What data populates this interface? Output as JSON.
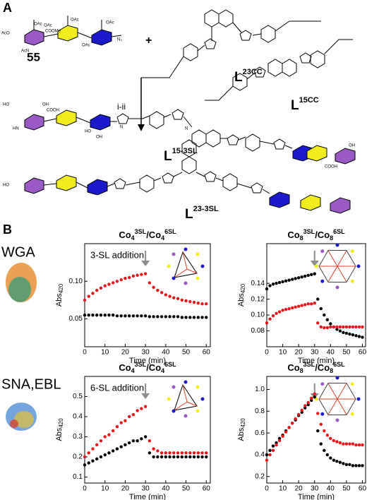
{
  "panels": [
    "A",
    "B"
  ],
  "panel_a": {
    "compound": "55",
    "plus": "+",
    "reagents": "i-ii",
    "ligands": [
      {
        "base": "L",
        "sup": "23CC"
      },
      {
        "base": "L",
        "sup": "15CC"
      },
      {
        "base": "L",
        "sup": "15-3SL"
      },
      {
        "base": "L",
        "sup": "23-3SL"
      }
    ],
    "atom_labels": [
      "AcO",
      "OAc",
      "OAc",
      "OAc",
      "AcN",
      "COOMe",
      "OAc",
      "OAc",
      "N₃",
      "HO",
      "OH",
      "COOH",
      "HN",
      "OH",
      "HO",
      "N",
      "N",
      "COOH",
      "OH",
      "HO"
    ]
  },
  "rows": [
    "WGA",
    "SNA,EBL"
  ],
  "chart_data": [
    {
      "type": "scatter",
      "title": [
        "Co",
        "4",
        "3SL",
        "/Co",
        "4",
        "6SL"
      ],
      "annotation": "3-SL addition",
      "xlabel": "Time (min)",
      "ylabel": [
        "Abs",
        "420"
      ],
      "xlim": [
        0,
        62
      ],
      "xticks": [
        0,
        10,
        20,
        30,
        40,
        50,
        60
      ],
      "ylim": [
        0.013,
        0.15
      ],
      "yticks": [
        0.05,
        {
          "value": 0.1,
          "label": "0.10"
        }
      ],
      "x": [
        0,
        2,
        4,
        6,
        8,
        10,
        12,
        14,
        16,
        18,
        20,
        22,
        24,
        26,
        28,
        30,
        32,
        34,
        36,
        38,
        40,
        42,
        44,
        46,
        48,
        50,
        52,
        54,
        56,
        58,
        60
      ],
      "series": [
        {
          "color": "#000000",
          "values": [
            0.055,
            0.055,
            0.055,
            0.055,
            0.055,
            0.055,
            0.055,
            0.055,
            0.054,
            0.054,
            0.054,
            0.054,
            0.054,
            0.054,
            0.054,
            0.054,
            0.053,
            0.053,
            0.053,
            0.053,
            0.053,
            0.053,
            0.053,
            0.053,
            0.052,
            0.052,
            0.052,
            0.052,
            0.052,
            0.052,
            0.052
          ]
        },
        {
          "color": "#e8161b",
          "values": [
            0.075,
            0.08,
            0.084,
            0.088,
            0.091,
            0.094,
            0.096,
            0.098,
            0.1,
            0.102,
            0.104,
            0.105,
            0.107,
            0.108,
            0.109,
            0.11,
            0.098,
            0.092,
            0.088,
            0.085,
            0.082,
            0.08,
            0.078,
            0.077,
            0.075,
            0.074,
            0.073,
            0.072,
            0.071,
            0.07,
            0.07
          ]
        }
      ]
    },
    {
      "type": "scatter",
      "title": [
        "Co",
        "8",
        "3SL",
        "/Co",
        "8",
        "6SL"
      ],
      "xlabel": "Time (min)",
      "ylabel": [
        "Abs",
        "420"
      ],
      "xlim": [
        0,
        62
      ],
      "xticks": [
        0,
        10,
        20,
        30,
        40,
        50,
        60
      ],
      "ylim": [
        0.06,
        0.19
      ],
      "yticks": [
        0.08,
        {
          "value": 0.1,
          "label": "0.10"
        },
        0.12,
        0.14
      ],
      "x": [
        0,
        2,
        4,
        6,
        8,
        10,
        12,
        14,
        16,
        18,
        20,
        22,
        24,
        26,
        28,
        30,
        32,
        34,
        36,
        38,
        40,
        42,
        44,
        46,
        48,
        50,
        52,
        54,
        56,
        58,
        60
      ],
      "series": [
        {
          "color": "#000000",
          "values": [
            0.133,
            0.137,
            0.139,
            0.14,
            0.141,
            0.142,
            0.143,
            0.144,
            0.145,
            0.146,
            0.147,
            0.148,
            0.149,
            0.15,
            0.151,
            0.152,
            0.12,
            0.108,
            0.1,
            0.094,
            0.089,
            0.085,
            0.082,
            0.08,
            0.078,
            0.077,
            0.076,
            0.075,
            0.074,
            0.073,
            0.072
          ]
        },
        {
          "color": "#e8161b",
          "values": [
            0.09,
            0.095,
            0.099,
            0.102,
            0.104,
            0.106,
            0.107,
            0.108,
            0.109,
            0.11,
            0.111,
            0.112,
            0.113,
            0.114,
            0.114,
            0.115,
            0.09,
            0.085,
            0.084,
            0.084,
            0.085,
            0.085,
            0.085,
            0.085,
            0.085,
            0.085,
            0.085,
            0.085,
            0.085,
            0.085,
            0.085
          ]
        }
      ]
    },
    {
      "type": "scatter",
      "title": [
        "Co",
        "4",
        "3SL",
        "/Co",
        "4",
        "6SL"
      ],
      "annotation": "6-SL addition",
      "xlabel": "Time (min)",
      "ylabel": [
        "Abs",
        "420"
      ],
      "xlim": [
        0,
        62
      ],
      "xticks": [
        0,
        10,
        20,
        30,
        40,
        50,
        60
      ],
      "ylim": [
        0.07,
        0.6
      ],
      "yticks": [
        0.1,
        0.2,
        0.3,
        0.4,
        0.5
      ],
      "x": [
        0,
        2,
        4,
        6,
        8,
        10,
        12,
        14,
        16,
        18,
        20,
        22,
        24,
        26,
        28,
        30,
        32,
        34,
        36,
        38,
        40,
        42,
        44,
        46,
        48,
        50,
        52,
        54,
        56,
        58,
        60
      ],
      "series": [
        {
          "color": "#000000",
          "values": [
            0.16,
            0.17,
            0.18,
            0.19,
            0.2,
            0.21,
            0.22,
            0.23,
            0.24,
            0.25,
            0.26,
            0.27,
            0.28,
            0.28,
            0.29,
            0.3,
            0.22,
            0.2,
            0.2,
            0.2,
            0.2,
            0.2,
            0.2,
            0.2,
            0.2,
            0.2,
            0.2,
            0.2,
            0.2,
            0.2,
            0.2
          ]
        },
        {
          "color": "#e8161b",
          "values": [
            0.2,
            0.22,
            0.24,
            0.26,
            0.28,
            0.3,
            0.31,
            0.33,
            0.35,
            0.37,
            0.38,
            0.4,
            0.41,
            0.43,
            0.44,
            0.45,
            0.28,
            0.24,
            0.23,
            0.22,
            0.22,
            0.22,
            0.22,
            0.22,
            0.22,
            0.22,
            0.22,
            0.22,
            0.22,
            0.22,
            0.22
          ]
        }
      ]
    },
    {
      "type": "scatter",
      "title": [
        "Co",
        "8",
        "3SL",
        "/Co",
        "8",
        "6SL"
      ],
      "xlabel": "Time (min)",
      "ylabel": [
        "Abs",
        "420"
      ],
      "xlim": [
        0,
        62
      ],
      "xticks": [
        0,
        10,
        20,
        30,
        40,
        50,
        60
      ],
      "ylim": [
        0.14,
        1.12
      ],
      "yticks": [
        0.2,
        0.4,
        0.6,
        0.8,
        {
          "value": 1,
          "label": "1.0"
        }
      ],
      "x": [
        0,
        2,
        4,
        6,
        8,
        10,
        12,
        14,
        16,
        18,
        20,
        22,
        24,
        26,
        28,
        30,
        32,
        34,
        36,
        38,
        40,
        42,
        44,
        46,
        48,
        50,
        52,
        54,
        56,
        58,
        60
      ],
      "series": [
        {
          "color": "#000000",
          "values": [
            0.4,
            0.44,
            0.48,
            0.51,
            0.55,
            0.58,
            0.62,
            0.65,
            0.69,
            0.72,
            0.76,
            0.79,
            0.83,
            0.86,
            0.9,
            0.93,
            0.62,
            0.5,
            0.44,
            0.4,
            0.37,
            0.35,
            0.34,
            0.33,
            0.32,
            0.31,
            0.31,
            0.3,
            0.3,
            0.3,
            0.3
          ]
        },
        {
          "color": "#e8161b",
          "values": [
            0.35,
            0.4,
            0.44,
            0.49,
            0.53,
            0.57,
            0.61,
            0.65,
            0.69,
            0.73,
            0.77,
            0.81,
            0.85,
            0.88,
            0.92,
            0.96,
            0.78,
            0.68,
            0.62,
            0.58,
            0.55,
            0.53,
            0.52,
            0.51,
            0.5,
            0.5,
            0.5,
            0.5,
            0.49,
            0.49,
            0.49
          ]
        }
      ]
    }
  ]
}
